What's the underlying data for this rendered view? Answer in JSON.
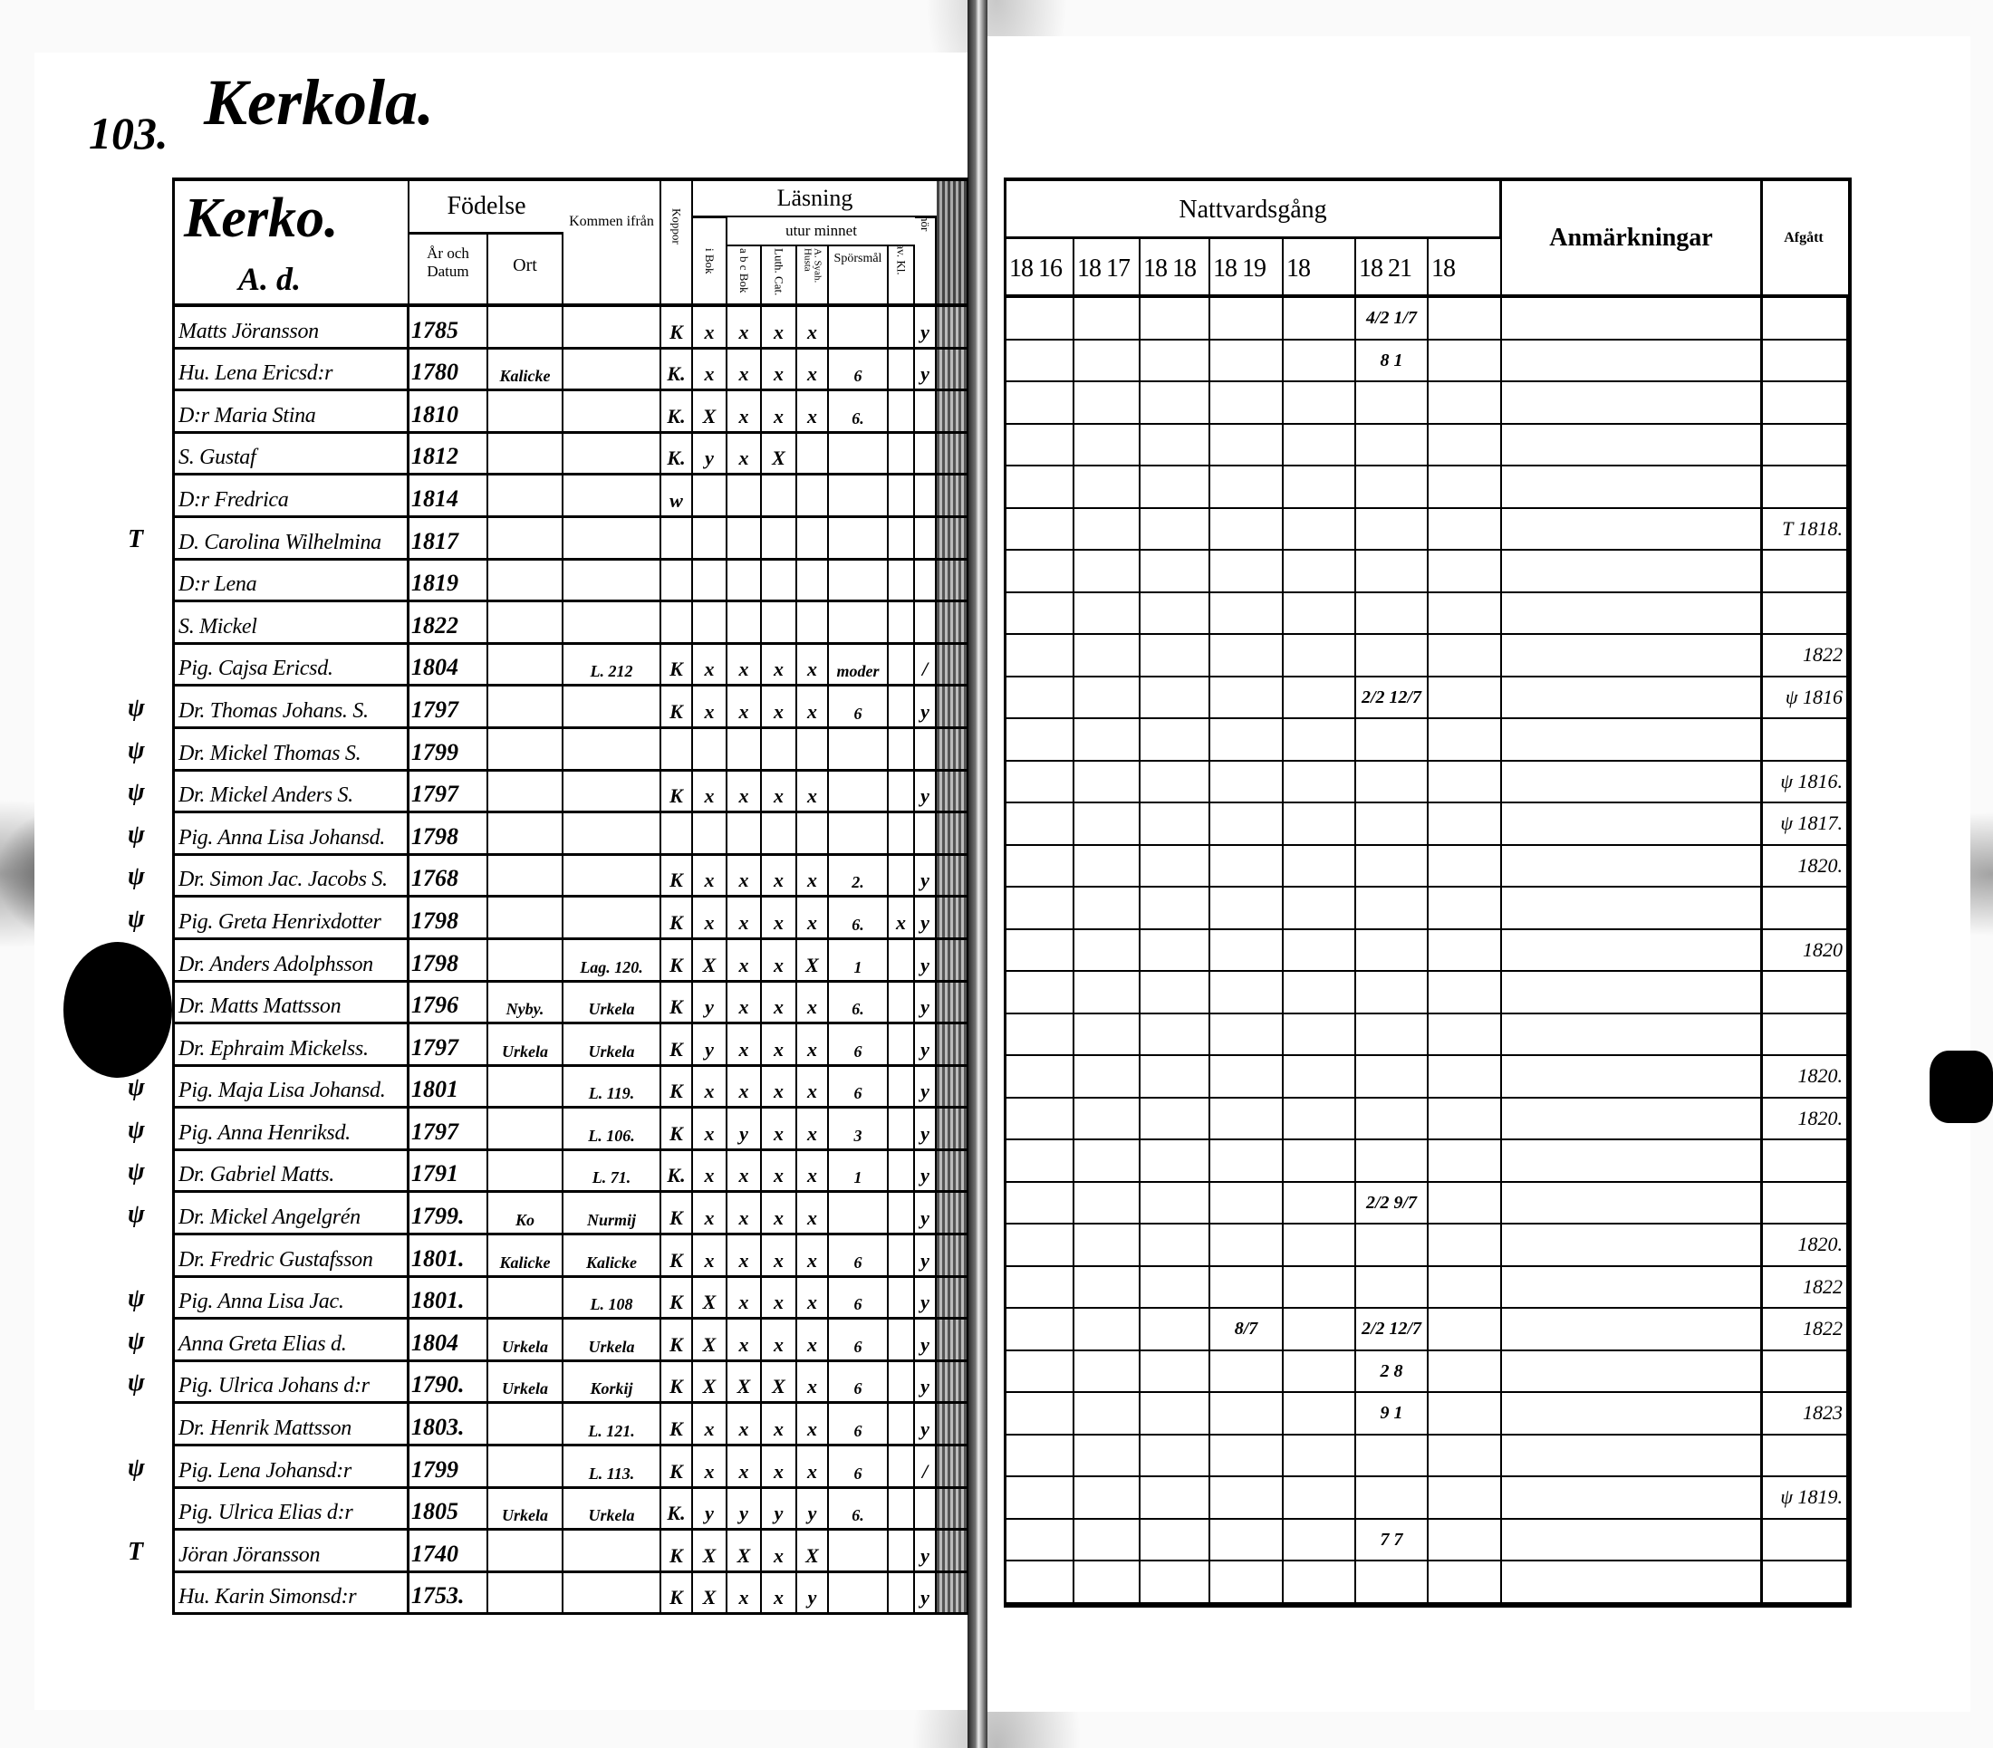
{
  "left_page": {
    "page_number": "103.",
    "parish": "Kerkola.",
    "header": {
      "village": "Kerko.",
      "household": "A. d.",
      "fodelse": "Födelse",
      "ar_och_datum": "År och Datum",
      "ort": "Ort",
      "kommen_ifran": "Kommen ifrån",
      "koppor": "Koppor",
      "lasning": "Läsning",
      "utur_minnet": "utur minnet",
      "i_bok": "i Bok",
      "abc_bok": "a b c Bok",
      "luth_cat": "Luth. Cat.",
      "sysh": "A. Syah. Husta",
      "sporsmal": "Spörsmål",
      "dav_kl": "Dav. Kl.",
      "forhor": "Förhör"
    },
    "rows": [
      {
        "mark": "",
        "name": "Matts Jöransson",
        "born": "1785",
        "ort": "",
        "from": "",
        "koppor": "K",
        "i_bok": "x",
        "abc_bok": "x",
        "luth_cat": "x",
        "sysh": "x",
        "sporsmal": "",
        "dav_kl": "",
        "forhor": "y"
      },
      {
        "mark": "",
        "name": "Hu. Lena Ericsd:r",
        "born": "1780",
        "ort": "Kalicke",
        "from": "",
        "koppor": "K.",
        "i_bok": "x",
        "abc_bok": "x",
        "luth_cat": "x",
        "sysh": "x",
        "sporsmal": "6",
        "dav_kl": "",
        "forhor": "y"
      },
      {
        "mark": "",
        "name": "D:r Maria Stina",
        "born": "1810",
        "ort": "",
        "from": "",
        "koppor": "K.",
        "i_bok": "X",
        "abc_bok": "x",
        "luth_cat": "x",
        "sysh": "x",
        "sporsmal": "6.",
        "dav_kl": "",
        "forhor": ""
      },
      {
        "mark": "",
        "name": "S. Gustaf",
        "born": "1812",
        "ort": "",
        "from": "",
        "koppor": "K.",
        "i_bok": "y",
        "abc_bok": "x",
        "luth_cat": "X",
        "sysh": "",
        "sporsmal": "",
        "dav_kl": "",
        "forhor": ""
      },
      {
        "mark": "",
        "name": "D:r Fredrica",
        "born": "1814",
        "ort": "",
        "from": "",
        "koppor": "w",
        "i_bok": "",
        "abc_bok": "",
        "luth_cat": "",
        "sysh": "",
        "sporsmal": "",
        "dav_kl": "",
        "forhor": ""
      },
      {
        "mark": "T",
        "name": "D. Carolina Wilhelmina",
        "born": "1817",
        "ort": "",
        "from": "",
        "koppor": "",
        "i_bok": "",
        "abc_bok": "",
        "luth_cat": "",
        "sysh": "",
        "sporsmal": "",
        "dav_kl": "",
        "forhor": ""
      },
      {
        "mark": "",
        "name": "D:r Lena",
        "born": "1819",
        "ort": "",
        "from": "",
        "koppor": "",
        "i_bok": "",
        "abc_bok": "",
        "luth_cat": "",
        "sysh": "",
        "sporsmal": "",
        "dav_kl": "",
        "forhor": ""
      },
      {
        "mark": "",
        "name": "S. Mickel",
        "born": "1822",
        "ort": "",
        "from": "",
        "koppor": "",
        "i_bok": "",
        "abc_bok": "",
        "luth_cat": "",
        "sysh": "",
        "sporsmal": "",
        "dav_kl": "",
        "forhor": ""
      },
      {
        "mark": "",
        "name": "Pig. Cajsa Ericsd.",
        "born": "1804",
        "ort": "",
        "from": "L. 212",
        "koppor": "K",
        "i_bok": "x",
        "abc_bok": "x",
        "luth_cat": "x",
        "sysh": "x",
        "sporsmal": "moder",
        "dav_kl": "",
        "forhor": "/"
      },
      {
        "mark": "ψ",
        "name": "Dr. Thomas Johans. S.",
        "born": "1797",
        "ort": "",
        "from": "",
        "koppor": "K",
        "i_bok": "x",
        "abc_bok": "x",
        "luth_cat": "x",
        "sysh": "x",
        "sporsmal": "6",
        "dav_kl": "",
        "forhor": "y"
      },
      {
        "mark": "ψ",
        "name": "Dr. Mickel Thomas S.",
        "born": "1799",
        "ort": "",
        "from": "",
        "koppor": "",
        "i_bok": "",
        "abc_bok": "",
        "luth_cat": "",
        "sysh": "",
        "sporsmal": "",
        "dav_kl": "",
        "forhor": ""
      },
      {
        "mark": "ψ",
        "name": "Dr. Mickel Anders S.",
        "born": "1797",
        "ort": "",
        "from": "",
        "koppor": "K",
        "i_bok": "x",
        "abc_bok": "x",
        "luth_cat": "x",
        "sysh": "x",
        "sporsmal": "",
        "dav_kl": "",
        "forhor": "y"
      },
      {
        "mark": "ψ",
        "name": "Pig. Anna Lisa Johansd.",
        "born": "1798",
        "ort": "",
        "from": "",
        "koppor": "",
        "i_bok": "",
        "abc_bok": "",
        "luth_cat": "",
        "sysh": "",
        "sporsmal": "",
        "dav_kl": "",
        "forhor": ""
      },
      {
        "mark": "ψ",
        "name": "Dr. Simon Jac. Jacobs S.",
        "born": "1768",
        "ort": "",
        "from": "",
        "koppor": "K",
        "i_bok": "x",
        "abc_bok": "x",
        "luth_cat": "x",
        "sysh": "x",
        "sporsmal": "2.",
        "dav_kl": "",
        "forhor": "y"
      },
      {
        "mark": "ψ",
        "name": "Pig. Greta Henrixdotter",
        "born": "1798",
        "ort": "",
        "from": "",
        "koppor": "K",
        "i_bok": "x",
        "abc_bok": "x",
        "luth_cat": "x",
        "sysh": "x",
        "sporsmal": "6.",
        "dav_kl": "x",
        "forhor": "y"
      },
      {
        "mark": "ψ",
        "name": "Dr. Anders Adolphsson",
        "born": "1798",
        "ort": "",
        "from": "Lag. 120.",
        "koppor": "K",
        "i_bok": "X",
        "abc_bok": "x",
        "luth_cat": "x",
        "sysh": "X",
        "sporsmal": "1",
        "dav_kl": "",
        "forhor": "y"
      },
      {
        "mark": "ψ",
        "name": "Dr. Matts Mattsson",
        "born": "1796",
        "ort": "Nyby.",
        "from": "Urkela",
        "koppor": "K",
        "i_bok": "y",
        "abc_bok": "x",
        "luth_cat": "x",
        "sysh": "x",
        "sporsmal": "6.",
        "dav_kl": "",
        "forhor": "y"
      },
      {
        "mark": "ψ",
        "name": "Dr. Ephraim Mickelss.",
        "born": "1797",
        "ort": "Urkela",
        "from": "Urkela",
        "koppor": "K",
        "i_bok": "y",
        "abc_bok": "x",
        "luth_cat": "x",
        "sysh": "x",
        "sporsmal": "6",
        "dav_kl": "",
        "forhor": "y"
      },
      {
        "mark": "ψ",
        "name": "Pig. Maja Lisa Johansd.",
        "born": "1801",
        "ort": "",
        "from": "L. 119.",
        "koppor": "K",
        "i_bok": "x",
        "abc_bok": "x",
        "luth_cat": "x",
        "sysh": "x",
        "sporsmal": "6",
        "dav_kl": "",
        "forhor": "y"
      },
      {
        "mark": "ψ",
        "name": "Pig. Anna Henriksd.",
        "born": "1797",
        "ort": "",
        "from": "L. 106.",
        "koppor": "K",
        "i_bok": "x",
        "abc_bok": "y",
        "luth_cat": "x",
        "sysh": "x",
        "sporsmal": "3",
        "dav_kl": "",
        "forhor": "y"
      },
      {
        "mark": "ψ",
        "name": "Dr. Gabriel Matts.",
        "born": "1791",
        "ort": "",
        "from": "L. 71.",
        "koppor": "K.",
        "i_bok": "x",
        "abc_bok": "x",
        "luth_cat": "x",
        "sysh": "x",
        "sporsmal": "1",
        "dav_kl": "",
        "forhor": "y"
      },
      {
        "mark": "ψ",
        "name": "Dr. Mickel Angelgrén",
        "born": "1799.",
        "ort": "Ko",
        "from": "Nurmij",
        "koppor": "K",
        "i_bok": "x",
        "abc_bok": "x",
        "luth_cat": "x",
        "sysh": "x",
        "sporsmal": "",
        "dav_kl": "",
        "forhor": "y"
      },
      {
        "mark": "",
        "name": "Dr. Fredric Gustafsson",
        "born": "1801.",
        "ort": "Kalicke",
        "from": "Kalicke",
        "koppor": "K",
        "i_bok": "x",
        "abc_bok": "x",
        "luth_cat": "x",
        "sysh": "x",
        "sporsmal": "6",
        "dav_kl": "",
        "forhor": "y"
      },
      {
        "mark": "ψ",
        "name": "Pig. Anna Lisa Jac.",
        "born": "1801.",
        "ort": "",
        "from": "L. 108",
        "koppor": "K",
        "i_bok": "X",
        "abc_bok": "x",
        "luth_cat": "x",
        "sysh": "x",
        "sporsmal": "6",
        "dav_kl": "",
        "forhor": "y"
      },
      {
        "mark": "ψ",
        "name": "Anna Greta Elias d.",
        "born": "1804",
        "ort": "Urkela",
        "from": "Urkela",
        "koppor": "K",
        "i_bok": "X",
        "abc_bok": "x",
        "luth_cat": "x",
        "sysh": "x",
        "sporsmal": "6",
        "dav_kl": "",
        "forhor": "y"
      },
      {
        "mark": "ψ",
        "name": "Pig. Ulrica Johans d:r",
        "born": "1790.",
        "ort": "Urkela",
        "from": "Korkij",
        "koppor": "K",
        "i_bok": "X",
        "abc_bok": "X",
        "luth_cat": "X",
        "sysh": "x",
        "sporsmal": "6",
        "dav_kl": "",
        "forhor": "y"
      },
      {
        "mark": "",
        "name": "Dr. Henrik Mattsson",
        "born": "1803.",
        "ort": "",
        "from": "L. 121.",
        "koppor": "K",
        "i_bok": "x",
        "abc_bok": "x",
        "luth_cat": "x",
        "sysh": "x",
        "sporsmal": "6",
        "dav_kl": "",
        "forhor": "y"
      },
      {
        "mark": "ψ",
        "name": "Pig. Lena Johansd:r",
        "born": "1799",
        "ort": "",
        "from": "L. 113.",
        "koppor": "K",
        "i_bok": "x",
        "abc_bok": "x",
        "luth_cat": "x",
        "sysh": "x",
        "sporsmal": "6",
        "dav_kl": "",
        "forhor": "/"
      },
      {
        "mark": "",
        "name": "Pig. Ulrica Elias d:r",
        "born": "1805",
        "ort": "Urkela",
        "from": "Urkela",
        "koppor": "K.",
        "i_bok": "y",
        "abc_bok": "y",
        "luth_cat": "y",
        "sysh": "y",
        "sporsmal": "6.",
        "dav_kl": "",
        "forhor": ""
      },
      {
        "mark": "T",
        "name": "Jöran Jöransson",
        "born": "1740",
        "ort": "",
        "from": "",
        "koppor": "K",
        "i_bok": "X",
        "abc_bok": "X",
        "luth_cat": "x",
        "sysh": "X",
        "sporsmal": "",
        "dav_kl": "",
        "forhor": "y"
      },
      {
        "mark": "",
        "name": "Hu. Karin Simonsd:r",
        "born": "1753.",
        "ort": "",
        "from": "",
        "koppor": "K",
        "i_bok": "X",
        "abc_bok": "x",
        "luth_cat": "x",
        "sysh": "y",
        "sporsmal": "",
        "dav_kl": "",
        "forhor": "y"
      }
    ]
  },
  "right_page": {
    "header": {
      "nattvardsgang": "Nattvardsgång",
      "years": [
        "18 16",
        "18 17",
        "18 18",
        "18 19",
        "18",
        "18 21",
        "18"
      ],
      "anmarkningar": "Anmärkningar",
      "afgatt": "Afgått"
    },
    "rows": [
      {
        "y1821": "4/2 1/7"
      },
      {
        "y1821": "8 1"
      },
      {},
      {},
      {},
      {
        "afgatt": "T 1818."
      },
      {},
      {},
      {
        "afgatt": "1822"
      },
      {
        "y1821": "2/2 12/7",
        "afgatt": "ψ 1816"
      },
      {},
      {
        "afgatt": "ψ 1816."
      },
      {
        "afgatt": "ψ 1817."
      },
      {
        "afgatt": "1820."
      },
      {},
      {
        "afgatt": "1820"
      },
      {},
      {},
      {
        "afgatt": "1820."
      },
      {
        "afgatt": "1820."
      },
      {},
      {
        "y1821": "2/2 9/7"
      },
      {
        "afgatt": "1820."
      },
      {
        "afgatt": "1822"
      },
      {
        "y1819": "8/7",
        "y1821": "2/2 12/7",
        "afgatt": "1822"
      },
      {
        "y1821": "2 8"
      },
      {
        "y1821": "9 1",
        "afgatt": "1823"
      },
      {},
      {
        "afgatt": "ψ 1819."
      },
      {
        "y1821": "7 7"
      },
      {}
    ]
  }
}
